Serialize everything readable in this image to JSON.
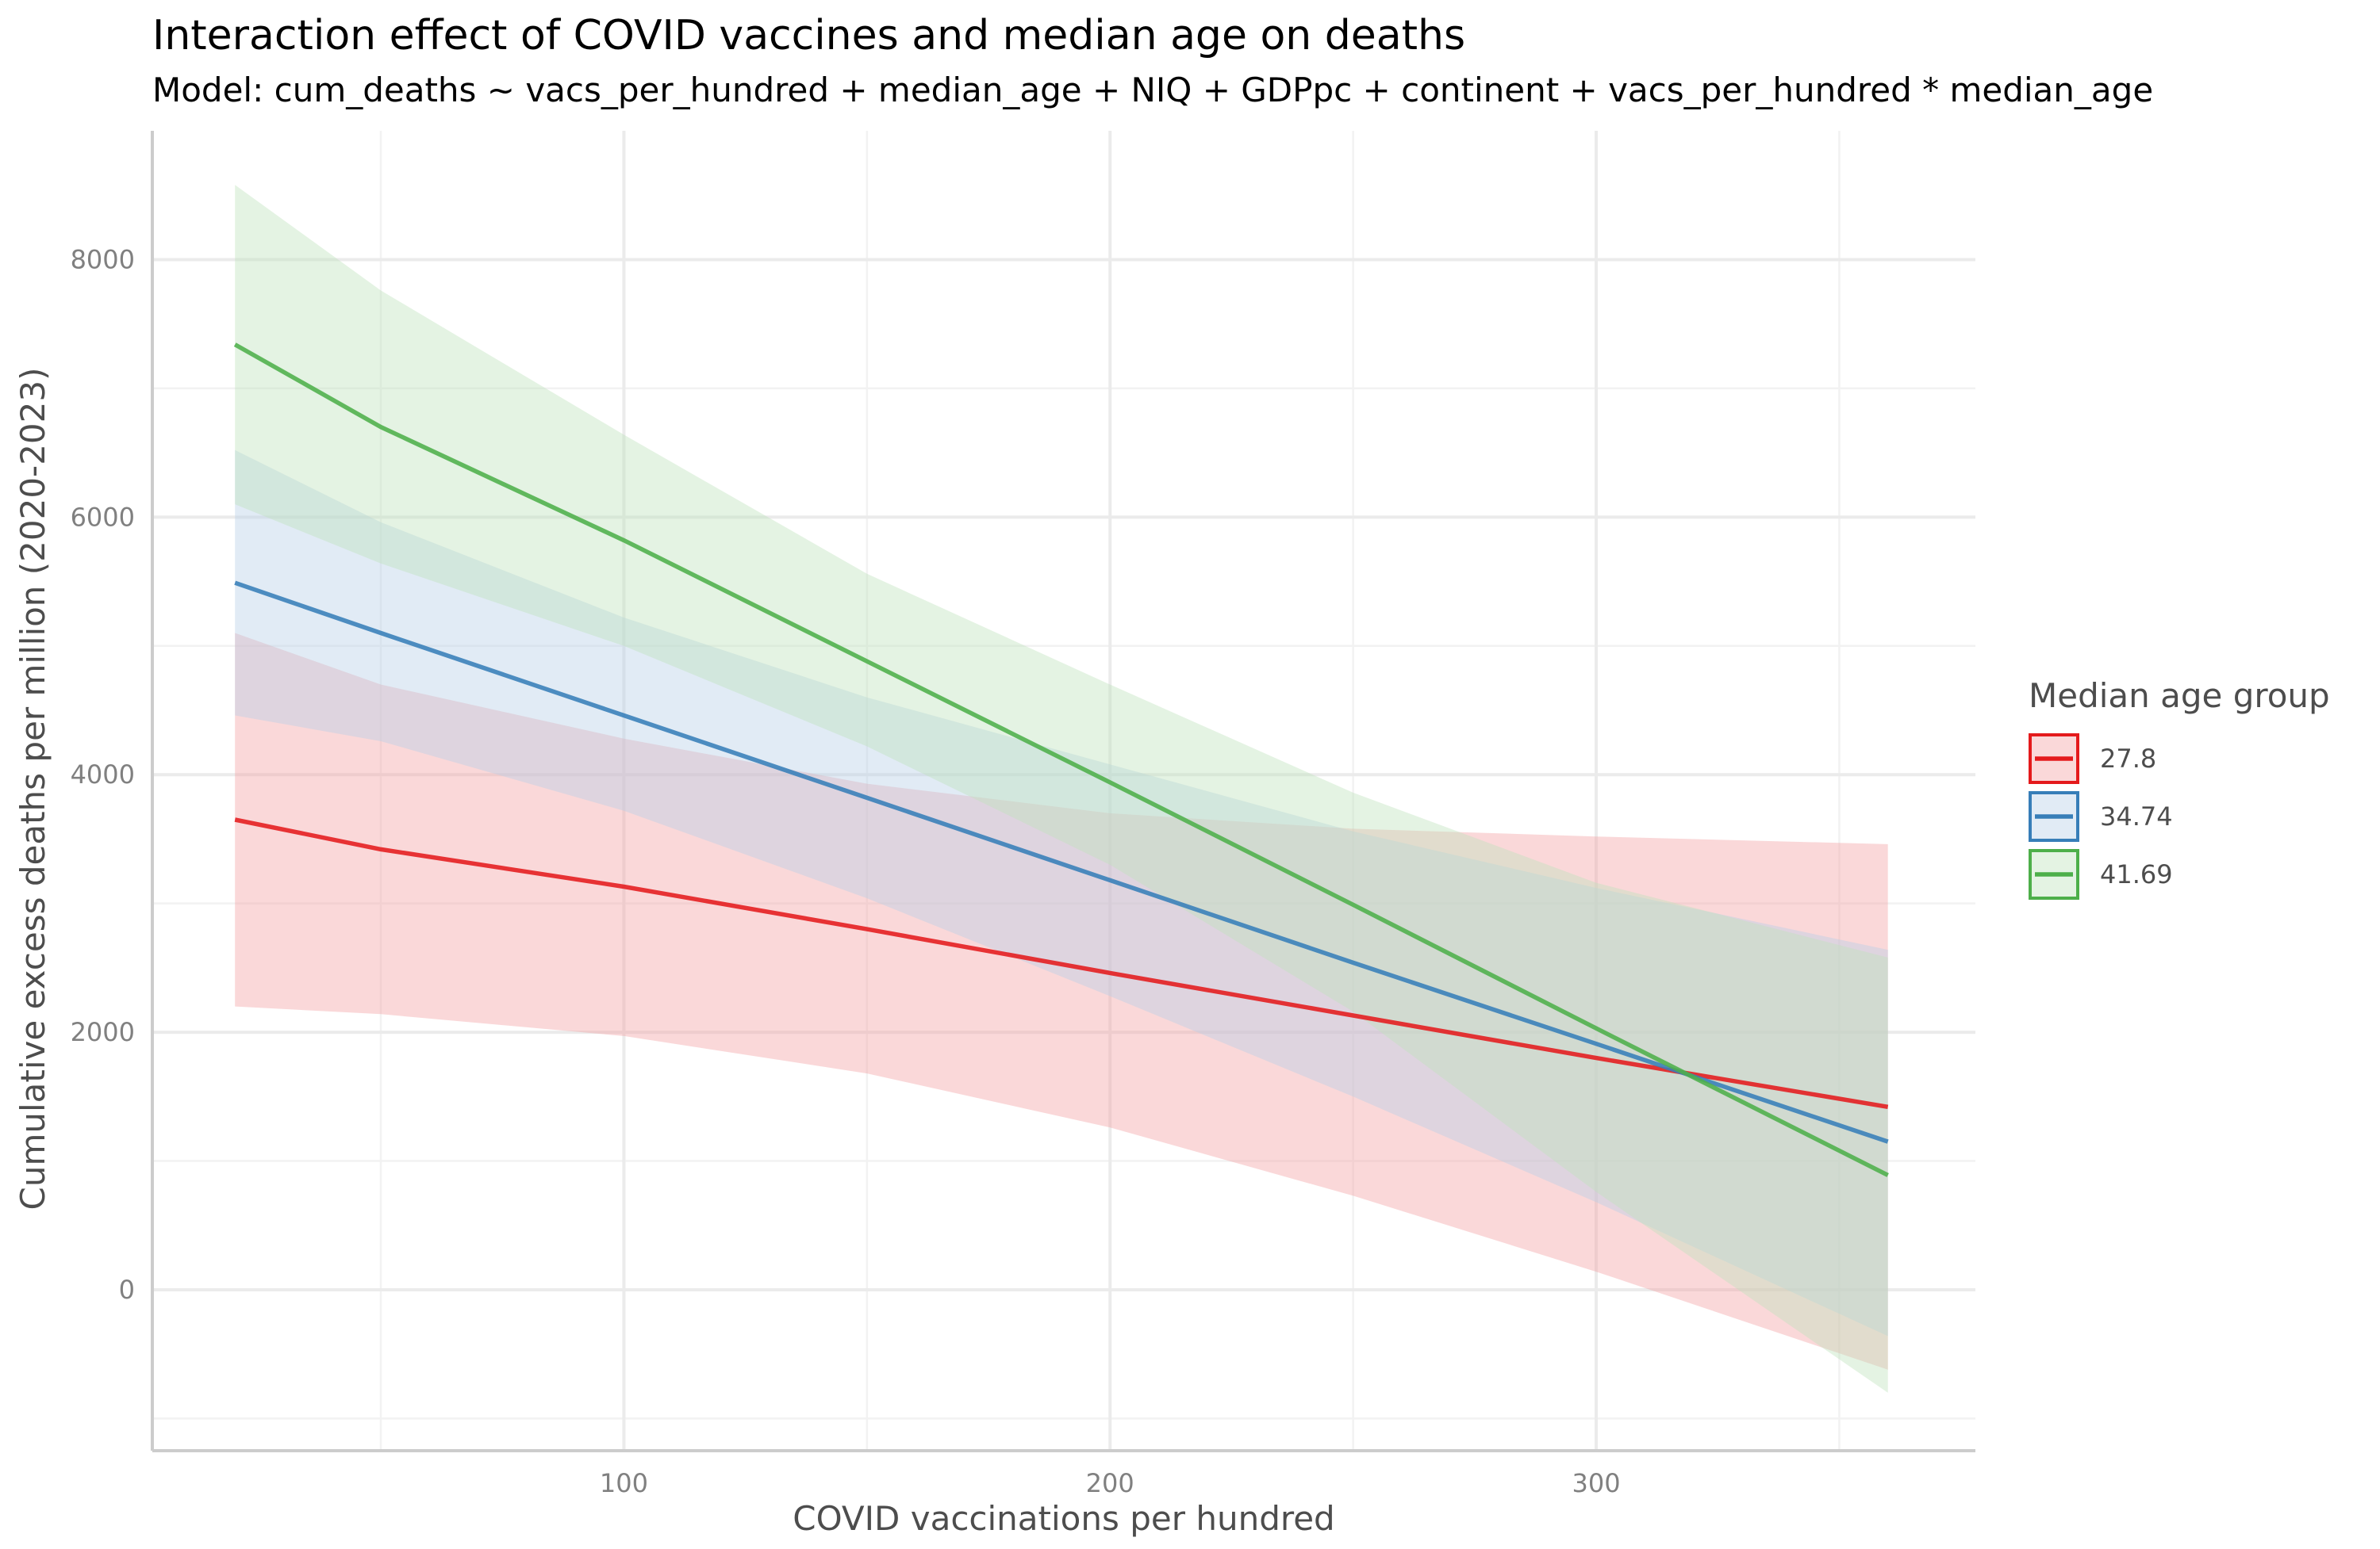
{
  "chart_data": {
    "type": "line",
    "title": "Interaction effect of COVID vaccines and median age on deaths",
    "subtitle": "Model: cum_deaths ~ vacs_per_hundred + median_age + NIQ + GDPpc + continent + vacs_per_hundred * median_age",
    "xlabel": "COVID vaccinations per hundred",
    "ylabel": "Cumulative excess deaths per million (2020-2023)",
    "xlim": [
      3,
      378
    ],
    "ylim": [
      -1250,
      9000
    ],
    "x_ticks": [
      100,
      200,
      300
    ],
    "y_ticks": [
      0,
      2000,
      4000,
      6000,
      8000
    ],
    "x_tick_labels": [
      "100",
      "200",
      "300"
    ],
    "y_tick_labels": [
      "0",
      "2000",
      "4000",
      "6000",
      "8000"
    ],
    "x_minor_ticks": [
      50,
      150,
      250,
      350
    ],
    "y_minor_ticks": [
      -1000,
      1000,
      3000,
      5000,
      7000
    ],
    "grid": true,
    "legend": {
      "title": "Median age group",
      "position": "right"
    },
    "series": [
      {
        "name": "27.8",
        "color": "#e41a1c",
        "fill": "#f4a3a4",
        "x": [
          20,
          50,
          100,
          150,
          200,
          250,
          300,
          360
        ],
        "y": [
          3650,
          3420,
          3130,
          2800,
          2460,
          2130,
          1800,
          1420
        ],
        "ci_lower": [
          2200,
          2140,
          1970,
          1680,
          1260,
          730,
          140,
          -620
        ],
        "ci_upper": [
          5100,
          4700,
          4280,
          3930,
          3700,
          3580,
          3520,
          3460
        ]
      },
      {
        "name": "34.74",
        "color": "#377eb8",
        "fill": "#b8d0e8",
        "x": [
          20,
          50,
          100,
          150,
          200,
          250,
          300,
          360
        ],
        "y": [
          5490,
          5100,
          4460,
          3820,
          3180,
          2540,
          1910,
          1150
        ],
        "ci_lower": [
          4460,
          4260,
          3720,
          3040,
          2280,
          1500,
          680,
          -360
        ],
        "ci_upper": [
          6520,
          5960,
          5220,
          4600,
          4080,
          3560,
          3120,
          2640
        ]
      },
      {
        "name": "41.69",
        "color": "#4daf4a",
        "fill": "#bfe3bd",
        "x": [
          20,
          50,
          100,
          150,
          200,
          250,
          300,
          360
        ],
        "y": [
          7340,
          6700,
          5820,
          4880,
          3940,
          2990,
          2030,
          890
        ],
        "ci_lower": [
          6100,
          5640,
          5000,
          4220,
          3300,
          2160,
          760,
          -800
        ],
        "ci_upper": [
          8580,
          7760,
          6640,
          5560,
          4700,
          3860,
          3160,
          2580
        ]
      }
    ]
  }
}
